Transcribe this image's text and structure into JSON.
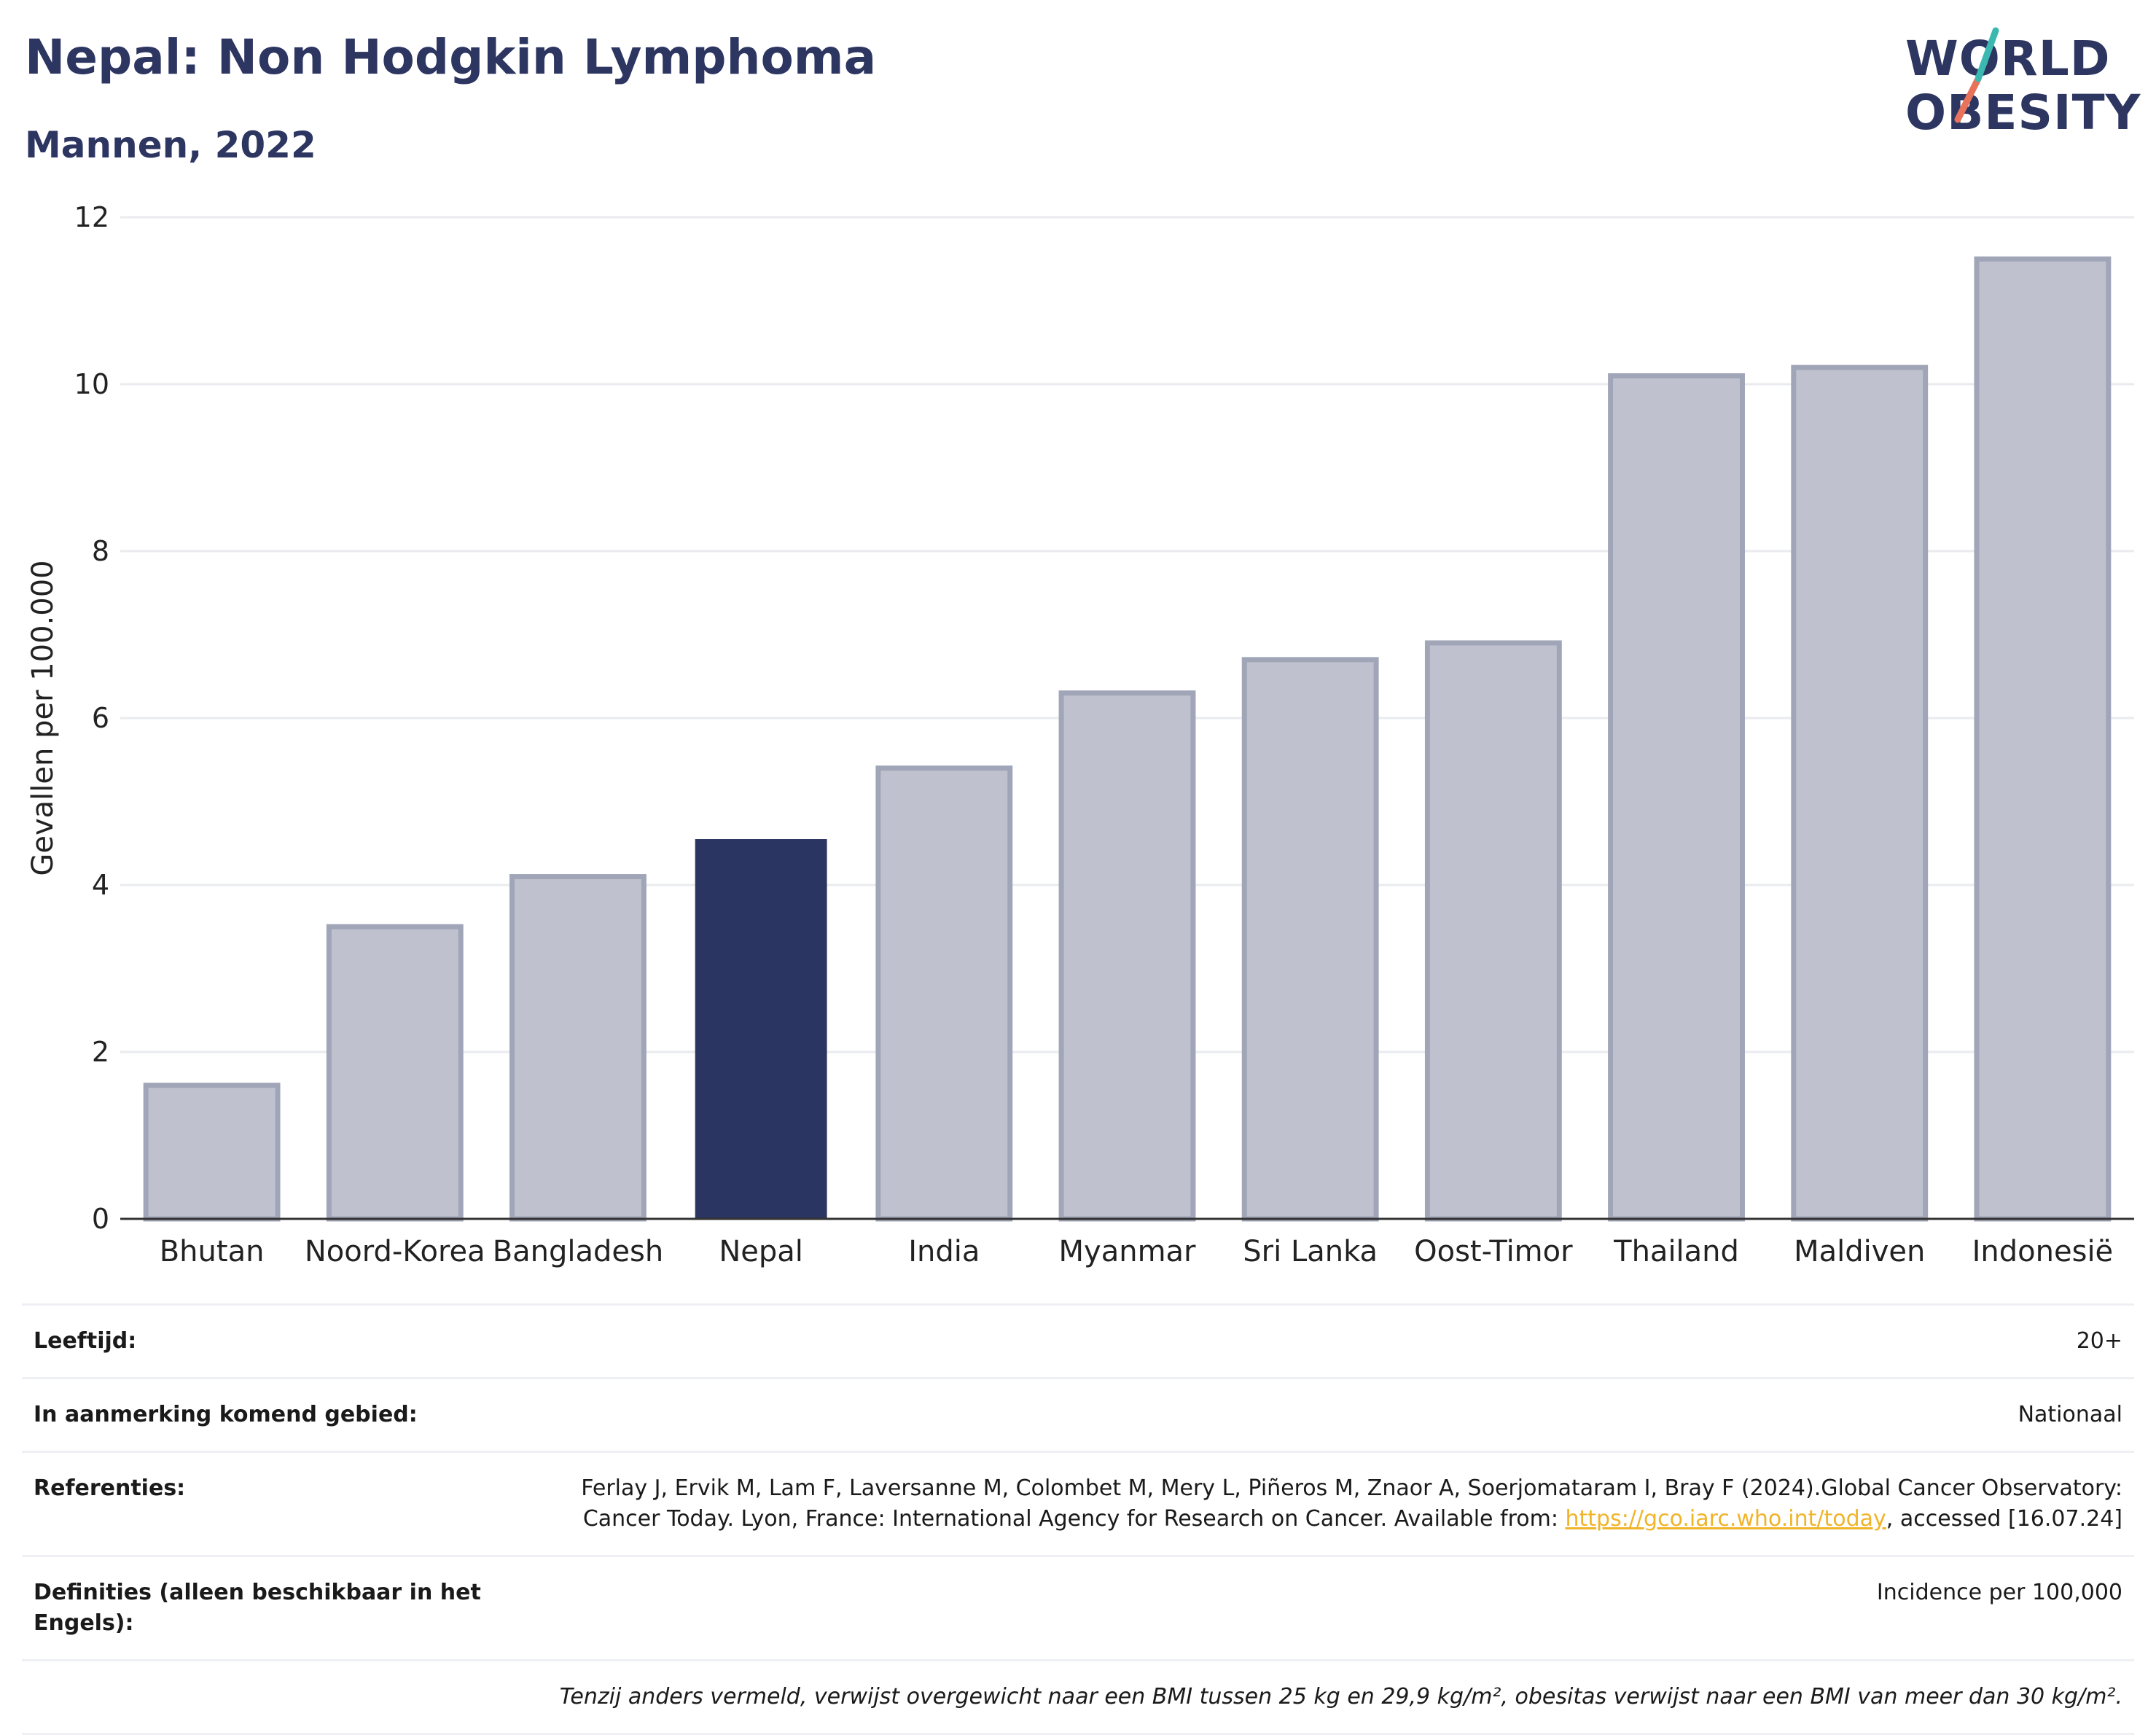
{
  "header": {
    "title": "Nepal: Non Hodgkin Lymphoma",
    "subtitle": "Mannen, 2022",
    "logo_line1": "WORLD",
    "logo_line2": "OBESITY"
  },
  "chart_data": {
    "type": "bar",
    "categories": [
      "Bhutan",
      "Noord-Korea",
      "Bangladesh",
      "Nepal",
      "India",
      "Myanmar",
      "Sri Lanka",
      "Oost-Timor",
      "Thailand",
      "Maldiven",
      "Indonesië"
    ],
    "values": [
      1.6,
      3.5,
      4.1,
      4.55,
      5.4,
      6.3,
      6.7,
      6.9,
      10.1,
      10.2,
      11.5
    ],
    "highlight": "Nepal",
    "xlabel": "",
    "ylabel": "Gevallen per 100.000",
    "ylim": [
      0,
      12
    ],
    "yticks": [
      0,
      2,
      4,
      6,
      8,
      10,
      12
    ],
    "grid": true,
    "colors": {
      "highlight_bar": "#2b3561",
      "other_bar": "#bfc2ce",
      "other_bar_border": "#a0a5b8",
      "gridline": "#e9ebef",
      "axis": "#333333"
    }
  },
  "info": {
    "age_label": "Leeftijd:",
    "age_value": "20+",
    "area_label": "In aanmerking komend gebied:",
    "area_value": "Nationaal",
    "references_label": "Referenties:",
    "references_text": "Ferlay J, Ervik M, Lam F, Laversanne M, Colombet M, Mery L, Piñeros M, Znaor A, Soerjomataram I, Bray F (2024).Global Cancer Observatory: Cancer Today. Lyon, France: International Agency for Research on Cancer. Available from:",
    "references_link": "https://gco.iarc.who.int/today",
    "references_suffix": ", accessed [16.07.24]",
    "definitions_label": "Definities (alleen beschikbaar in het Engels):",
    "definitions_value": "Incidence per 100,000",
    "footnote": "Tenzij anders vermeld, verwijst overgewicht naar een BMI tussen 25 kg en 29,9 kg/m², obesitas verwijst naar een BMI van meer dan 30 kg/m².",
    "link_color": "#f0b429"
  }
}
